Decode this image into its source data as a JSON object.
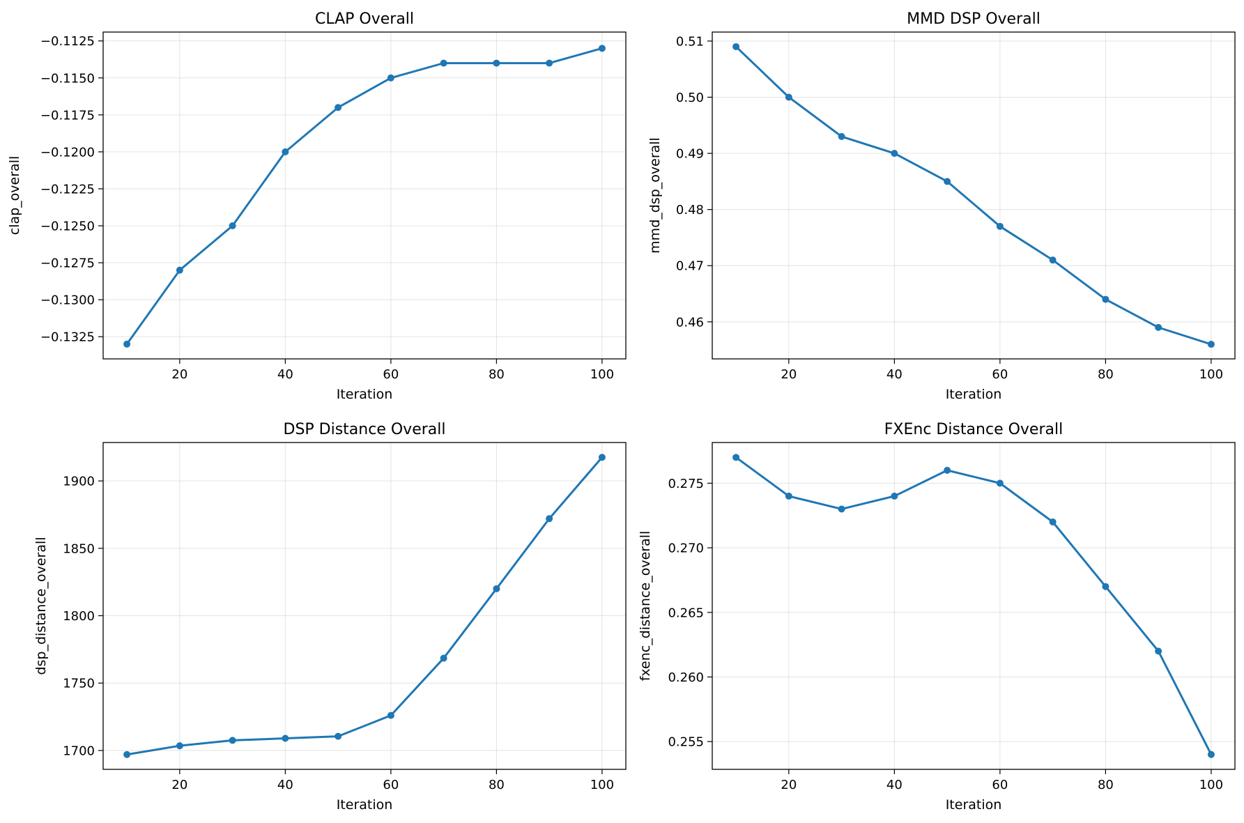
{
  "colors": {
    "series": "#1f77b4"
  },
  "chart_data": [
    {
      "type": "line",
      "title": "CLAP Overall",
      "xlabel": "Iteration",
      "ylabel": "clap_overall",
      "x": [
        10,
        20,
        30,
        40,
        50,
        60,
        70,
        80,
        90,
        100
      ],
      "series": [
        {
          "values": [
            -0.133,
            -0.128,
            -0.125,
            -0.12,
            -0.117,
            -0.115,
            -0.114,
            -0.114,
            -0.114,
            -0.113
          ]
        }
      ],
      "xlim": [
        5.5,
        104.5
      ],
      "ylim": [
        -0.134,
        -0.1119
      ],
      "xticks": [
        20,
        40,
        60,
        80,
        100
      ],
      "yticks": [
        -0.1325,
        -0.13,
        -0.1275,
        -0.125,
        -0.1225,
        -0.12,
        -0.1175,
        -0.115,
        -0.1125
      ],
      "ytick_labels": [
        "−0.1325",
        "−0.1300",
        "−0.1275",
        "−0.1250",
        "−0.1225",
        "−0.1200",
        "−0.1175",
        "−0.1150",
        "−0.1125"
      ],
      "grid": true
    },
    {
      "type": "line",
      "title": "MMD DSP Overall",
      "xlabel": "Iteration",
      "ylabel": "mmd_dsp_overall",
      "x": [
        10,
        20,
        30,
        40,
        50,
        60,
        70,
        80,
        90,
        100
      ],
      "series": [
        {
          "values": [
            0.509,
            0.5,
            0.493,
            0.49,
            0.485,
            0.477,
            0.471,
            0.464,
            0.459,
            0.456
          ]
        }
      ],
      "xlim": [
        5.5,
        104.5
      ],
      "ylim": [
        0.4534,
        0.5116
      ],
      "xticks": [
        20,
        40,
        60,
        80,
        100
      ],
      "yticks": [
        0.46,
        0.47,
        0.48,
        0.49,
        0.5,
        0.51
      ],
      "ytick_labels": [
        "0.46",
        "0.47",
        "0.48",
        "0.49",
        "0.50",
        "0.51"
      ],
      "grid": true
    },
    {
      "type": "line",
      "title": "DSP Distance Overall",
      "xlabel": "Iteration",
      "ylabel": "dsp_distance_overall",
      "x": [
        10,
        20,
        30,
        40,
        50,
        60,
        70,
        80,
        90,
        100
      ],
      "series": [
        {
          "values": [
            1697,
            1703.5,
            1707.5,
            1709,
            1710.5,
            1726,
            1768.5,
            1820,
            1872,
            1917.5
          ]
        }
      ],
      "xlim": [
        5.5,
        104.5
      ],
      "ylim": [
        1686,
        1928.5
      ],
      "xticks": [
        20,
        40,
        60,
        80,
        100
      ],
      "yticks": [
        1700,
        1750,
        1800,
        1850,
        1900
      ],
      "ytick_labels": [
        "1700",
        "1750",
        "1800",
        "1850",
        "1900"
      ],
      "grid": true
    },
    {
      "type": "line",
      "title": "FXEnc Distance Overall",
      "xlabel": "Iteration",
      "ylabel": "fxenc_distance_overall",
      "x": [
        10,
        20,
        30,
        40,
        50,
        60,
        70,
        80,
        90,
        100
      ],
      "series": [
        {
          "values": [
            0.277,
            0.274,
            0.273,
            0.274,
            0.276,
            0.275,
            0.272,
            0.267,
            0.262,
            0.254
          ]
        }
      ],
      "xlim": [
        5.5,
        104.5
      ],
      "ylim": [
        0.25285,
        0.27815
      ],
      "xticks": [
        20,
        40,
        60,
        80,
        100
      ],
      "yticks": [
        0.255,
        0.26,
        0.265,
        0.27,
        0.275
      ],
      "ytick_labels": [
        "0.255",
        "0.260",
        "0.265",
        "0.270",
        "0.275"
      ],
      "grid": true
    }
  ]
}
